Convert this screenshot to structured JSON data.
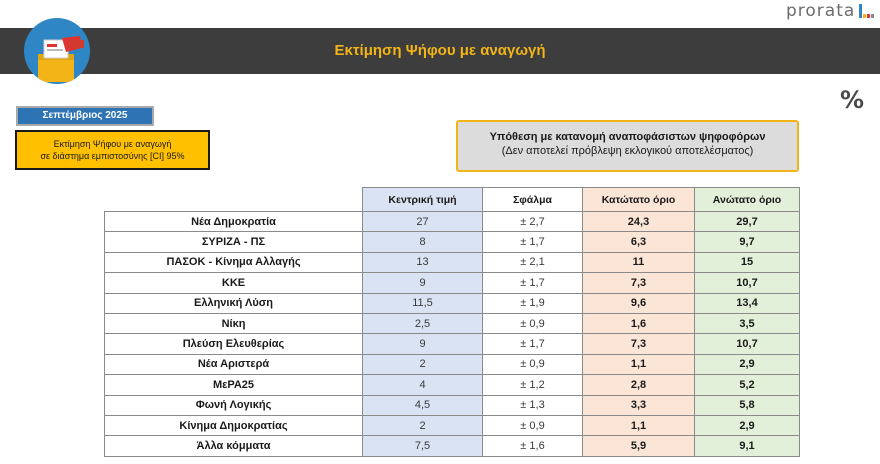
{
  "brand": {
    "logo_text": "prorata",
    "bar_colors": [
      "#2f86c5",
      "#f2b416",
      "#e0332f",
      "#8a8a8a"
    ]
  },
  "header": {
    "title": "Εκτίμηση Ψήφου με αναγωγή",
    "percent_icon": "%"
  },
  "date_label": "Σεπτέμβριος 2025",
  "ci_note": {
    "line1": "Εκτίμηση Ψήφου με αναγωγή",
    "line2": "σε διάστημα εμπιστοσύνης [CI] 95%"
  },
  "hypothesis": {
    "line1": "Υπόθεση με κατανομή αναποφάσιστων ψηφοφόρων",
    "line2": "(Δεν αποτελεί πρόβλεψη εκλογικού αποτελέσματος)"
  },
  "colors": {
    "banner": "#3d3d3d",
    "title": "#f2b416",
    "center_col": "#dae3f3",
    "low_col": "#fbe5d6",
    "high_col": "#e2efd9"
  },
  "chart_data": {
    "type": "table",
    "columns": [
      "Κεντρική τιμή",
      "Σφάλμα",
      "Κατώτατο όριο",
      "Ανώτατο όριο"
    ],
    "rows": [
      {
        "party": "Νέα Δημοκρατία",
        "center": "27",
        "error": "± 2,7",
        "low": "24,3",
        "high": "29,7"
      },
      {
        "party": "ΣΥΡΙΖΑ - ΠΣ",
        "center": "8",
        "error": "± 1,7",
        "low": "6,3",
        "high": "9,7"
      },
      {
        "party": "ΠΑΣΟΚ - Κίνημα Αλλαγής",
        "center": "13",
        "error": "± 2,1",
        "low": "11",
        "high": "15"
      },
      {
        "party": "ΚΚΕ",
        "center": "9",
        "error": "± 1,7",
        "low": "7,3",
        "high": "10,7"
      },
      {
        "party": "Ελληνική Λύση",
        "center": "11,5",
        "error": "± 1,9",
        "low": "9,6",
        "high": "13,4"
      },
      {
        "party": "Νίκη",
        "center": "2,5",
        "error": "± 0,9",
        "low": "1,6",
        "high": "3,5"
      },
      {
        "party": "Πλεύση Ελευθερίας",
        "center": "9",
        "error": "± 1,7",
        "low": "7,3",
        "high": "10,7"
      },
      {
        "party": "Νέα Αριστερά",
        "center": "2",
        "error": "± 0,9",
        "low": "1,1",
        "high": "2,9"
      },
      {
        "party": "ΜεΡΑ25",
        "center": "4",
        "error": "± 1,2",
        "low": "2,8",
        "high": "5,2"
      },
      {
        "party": "Φωνή Λογικής",
        "center": "4,5",
        "error": "± 1,3",
        "low": "3,3",
        "high": "5,8"
      },
      {
        "party": "Κίνημα Δημοκρατίας",
        "center": "2",
        "error": "± 0,9",
        "low": "1,1",
        "high": "2,9"
      },
      {
        "party": "Άλλα κόμματα",
        "center": "7,5",
        "error": "± 1,6",
        "low": "5,9",
        "high": "9,1"
      }
    ]
  }
}
